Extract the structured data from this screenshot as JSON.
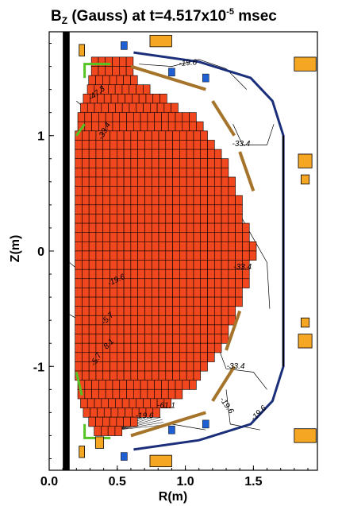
{
  "chart_data": {
    "type": "contour",
    "title_main": "B",
    "title_sub": "Z",
    "title_rest": " (Gauss) at t=4.517x10",
    "title_exp": "-5",
    "title_end": " msec",
    "xlabel": "R(m)",
    "ylabel": "Z(m)",
    "xlim": [
      0.0,
      1.97
    ],
    "ylim": [
      -1.9,
      1.9
    ],
    "x_ticks": [
      {
        "value": 0.0,
        "label": "0.0"
      },
      {
        "value": 0.5,
        "label": "0.5"
      },
      {
        "value": 1.0,
        "label": "1.0"
      },
      {
        "value": 1.5,
        "label": "1.5"
      }
    ],
    "y_ticks": [
      {
        "value": 1,
        "label": "1"
      },
      {
        "value": 0,
        "label": "0"
      },
      {
        "value": -1,
        "label": "-1"
      }
    ],
    "contour_labels": [
      {
        "r": 1.02,
        "z": 1.61,
        "text": "-19.6",
        "rot": -4
      },
      {
        "r": 0.36,
        "z": 1.35,
        "text": "-47.3",
        "rot": -38
      },
      {
        "r": 0.42,
        "z": 1.03,
        "text": "-33.4",
        "rot": -62
      },
      {
        "r": 1.41,
        "z": 0.91,
        "text": "-33.4",
        "rot": 0
      },
      {
        "r": 1.42,
        "z": -0.16,
        "text": "-33.4",
        "rot": 0
      },
      {
        "r": 0.5,
        "z": -0.27,
        "text": "-19.6",
        "rot": -25
      },
      {
        "r": 0.44,
        "z": -0.6,
        "text": "-5.7",
        "rot": -45
      },
      {
        "r": 0.45,
        "z": -0.82,
        "text": "8.1",
        "rot": -45
      },
      {
        "r": 0.36,
        "z": -0.95,
        "text": "-5.7",
        "rot": -60
      },
      {
        "r": 1.37,
        "z": -1.02,
        "text": "-33.4",
        "rot": 0
      },
      {
        "r": 1.29,
        "z": -1.35,
        "text": "-19.6",
        "rot": 55
      },
      {
        "r": 1.55,
        "z": -1.42,
        "text": "-19.6",
        "rot": -45
      },
      {
        "r": 0.7,
        "z": -1.45,
        "text": "-19.6",
        "rot": 0
      },
      {
        "r": 0.86,
        "z": -1.36,
        "text": "-61.1",
        "rot": 0
      }
    ],
    "wall_outline": [
      [
        0.62,
        1.72
      ],
      [
        1.1,
        1.64
      ],
      [
        1.48,
        1.5
      ],
      [
        1.64,
        1.3
      ],
      [
        1.72,
        1.0
      ],
      [
        1.72,
        -1.0
      ],
      [
        1.64,
        -1.3
      ],
      [
        1.48,
        -1.5
      ],
      [
        1.1,
        -1.64
      ],
      [
        0.62,
        -1.72
      ]
    ],
    "plasma_grid": {
      "cell_r": 0.0512,
      "cell_z": 0.0813,
      "rows": [
        [
          1.64,
          0.31,
          0.6
        ],
        [
          1.56,
          0.31,
          0.6
        ],
        [
          1.48,
          0.29,
          0.66
        ],
        [
          1.4,
          0.28,
          0.76
        ],
        [
          1.32,
          0.25,
          0.86
        ],
        [
          1.24,
          0.23,
          0.97
        ],
        [
          1.16,
          0.21,
          1.07
        ],
        [
          1.08,
          0.21,
          1.12
        ],
        [
          1.0,
          0.19,
          1.17
        ],
        [
          0.92,
          0.19,
          1.22
        ],
        [
          0.84,
          0.19,
          1.27
        ],
        [
          0.76,
          0.19,
          1.32
        ],
        [
          0.68,
          0.19,
          1.32
        ],
        [
          0.6,
          0.19,
          1.37
        ],
        [
          0.52,
          0.19,
          1.37
        ],
        [
          0.44,
          0.19,
          1.42
        ],
        [
          0.36,
          0.19,
          1.42
        ],
        [
          0.28,
          0.19,
          1.42
        ],
        [
          0.2,
          0.19,
          1.47
        ],
        [
          0.12,
          0.19,
          1.47
        ],
        [
          0.04,
          0.19,
          1.53
        ],
        [
          -0.04,
          0.19,
          1.53
        ],
        [
          -0.12,
          0.19,
          1.47
        ],
        [
          -0.2,
          0.19,
          1.47
        ],
        [
          -0.28,
          0.19,
          1.47
        ],
        [
          -0.36,
          0.19,
          1.42
        ],
        [
          -0.44,
          0.19,
          1.42
        ],
        [
          -0.52,
          0.19,
          1.37
        ],
        [
          -0.6,
          0.19,
          1.37
        ],
        [
          -0.68,
          0.19,
          1.32
        ],
        [
          -0.76,
          0.19,
          1.32
        ],
        [
          -0.84,
          0.19,
          1.27
        ],
        [
          -0.92,
          0.19,
          1.22
        ],
        [
          -1.0,
          0.19,
          1.17
        ],
        [
          -1.08,
          0.19,
          1.12
        ],
        [
          -1.16,
          0.21,
          1.07
        ],
        [
          -1.24,
          0.21,
          0.97
        ],
        [
          -1.32,
          0.23,
          0.92
        ],
        [
          -1.4,
          0.25,
          0.81
        ],
        [
          -1.48,
          0.29,
          0.66
        ],
        [
          -1.56,
          0.33,
          0.56
        ]
      ]
    },
    "coils": [
      {
        "r": 0.82,
        "z": 1.82,
        "w": 0.16,
        "h": 0.1,
        "color": "#f5a623"
      },
      {
        "r": 1.88,
        "z": 1.62,
        "w": 0.16,
        "h": 0.12,
        "color": "#f5a623"
      },
      {
        "r": 1.88,
        "z": 0.78,
        "w": 0.1,
        "h": 0.12,
        "color": "#f5a623"
      },
      {
        "r": 1.88,
        "z": 0.62,
        "w": 0.06,
        "h": 0.08,
        "color": "#f5a623"
      },
      {
        "r": 1.88,
        "z": -0.62,
        "w": 0.06,
        "h": 0.08,
        "color": "#f5a623"
      },
      {
        "r": 1.88,
        "z": -0.78,
        "w": 0.1,
        "h": 0.12,
        "color": "#f5a623"
      },
      {
        "r": 1.88,
        "z": -1.6,
        "w": 0.16,
        "h": 0.12,
        "color": "#f5a623"
      },
      {
        "r": 0.82,
        "z": -1.82,
        "w": 0.16,
        "h": 0.1,
        "color": "#f5a623"
      },
      {
        "r": 0.24,
        "z": 1.74,
        "w": 0.04,
        "h": 0.1,
        "color": "#f5a623"
      },
      {
        "r": 0.24,
        "z": -1.74,
        "w": 0.04,
        "h": 0.1,
        "color": "#f5a623"
      },
      {
        "r": 0.37,
        "z": -1.66,
        "w": 0.06,
        "h": 0.1,
        "color": "#f5a623"
      }
    ],
    "colors": {
      "plasma_fill": "#f0471f",
      "plasma_grid": "#000000",
      "wall": "#1a2e7a",
      "passive_plates": "#a5742a",
      "coils": "#f5a623",
      "divertor": "#55c423",
      "center_stack": "#000000",
      "blue_parts": "#1f5fd1"
    }
  }
}
